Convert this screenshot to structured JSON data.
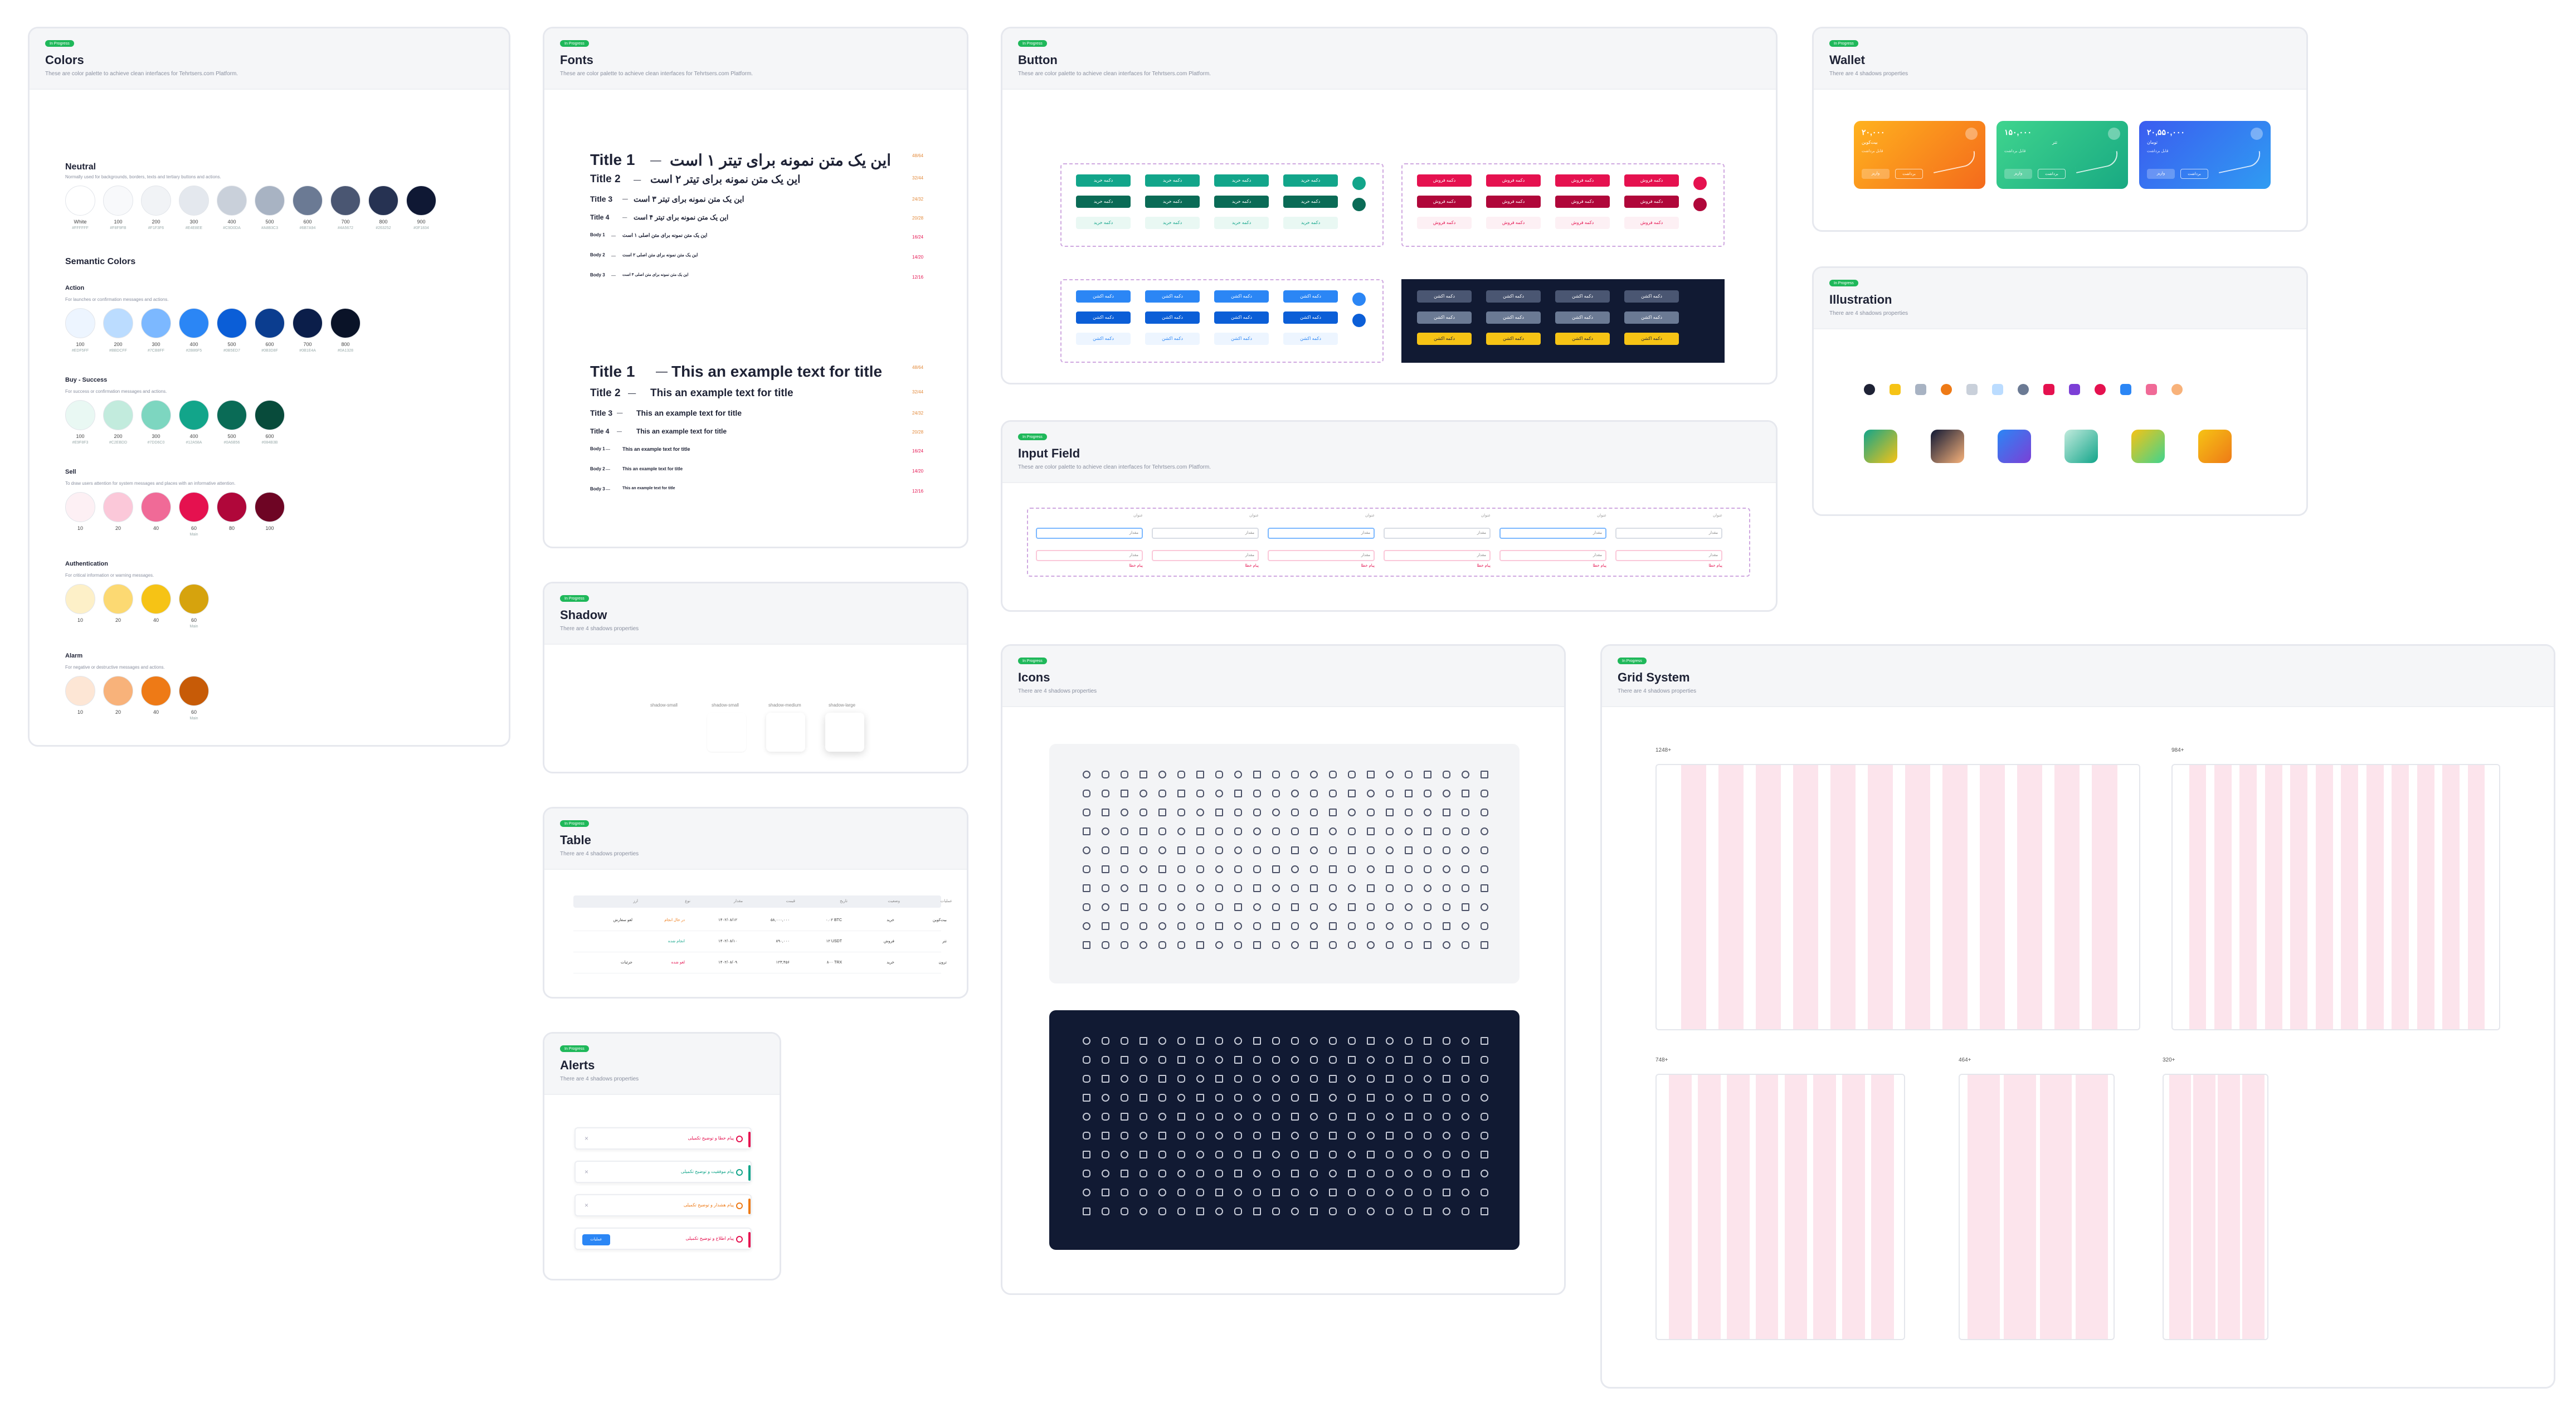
{
  "badge_label": "In Progress",
  "colors": {
    "title": "Colors",
    "sub": "These are color palette to achieve clean interfaces for Tehrtsers.com Platform.",
    "neutral": {
      "title": "Neutral",
      "desc": "Normally used for backgrounds, borders, texts and tertiary buttons and actions.",
      "swatches": [
        {
          "label": "White",
          "hex": "#FFFFFF",
          "color": "#ffffff"
        },
        {
          "label": "100",
          "hex": "#F8F9FB",
          "color": "#f8f9fb"
        },
        {
          "label": "200",
          "hex": "#F1F3F6",
          "color": "#f1f3f6"
        },
        {
          "label": "300",
          "hex": "#E4E8EE",
          "color": "#e4e8ee"
        },
        {
          "label": "400",
          "hex": "#C9D0DA",
          "color": "#c9d0da"
        },
        {
          "label": "500",
          "hex": "#A8B3C3",
          "color": "#a8b3c3"
        },
        {
          "label": "600",
          "hex": "#6B7A94",
          "color": "#6b7a94"
        },
        {
          "label": "700",
          "hex": "#4A5672",
          "color": "#4a5672"
        },
        {
          "label": "800",
          "hex": "#263252",
          "color": "#263252"
        },
        {
          "label": "900",
          "hex": "#0F1834",
          "color": "#0f1834"
        }
      ]
    },
    "semantic_title": "Semantic Colors",
    "action": {
      "title": "Action",
      "desc": "For launches or confirmation messages and actions.",
      "swatches": [
        {
          "label": "100",
          "hex": "#EDF5FF",
          "color": "#edf5ff"
        },
        {
          "label": "200",
          "hex": "#BBDCFF",
          "color": "#bbdcff"
        },
        {
          "label": "300",
          "hex": "#7CB8FF",
          "color": "#7cb8ff"
        },
        {
          "label": "400",
          "hex": "#2B86F5",
          "color": "#2b86f5"
        },
        {
          "label": "500",
          "hex": "#0B5ED7",
          "color": "#0b5ed7"
        },
        {
          "label": "600",
          "hex": "#0B3D8F",
          "color": "#0b3d8f"
        },
        {
          "label": "700",
          "hex": "#0B1E4A",
          "color": "#0b1e4a"
        },
        {
          "label": "800",
          "hex": "#0A1328",
          "color": "#0a1328"
        }
      ]
    },
    "success": {
      "title": "Buy - Success",
      "desc": "For success or confirmation messages and actions.",
      "swatches": [
        {
          "label": "100",
          "hex": "#E9F8F3",
          "color": "#e9f8f3"
        },
        {
          "label": "200",
          "hex": "#C2EBDD",
          "color": "#c2ebdd"
        },
        {
          "label": "300",
          "hex": "#7DD6C0",
          "color": "#7dd6c0"
        },
        {
          "label": "400",
          "hex": "#12A58A",
          "color": "#12a58a"
        },
        {
          "label": "500",
          "hex": "#0A6B56",
          "color": "#0a6b56"
        },
        {
          "label": "600",
          "hex": "#084B3B",
          "color": "#084b3b"
        }
      ]
    },
    "sell": {
      "title": "Sell",
      "desc": "To draw users attention for system messages and places with an informative attention.",
      "swatches": [
        {
          "label": "10",
          "hex": "",
          "color": "#fdf0f4"
        },
        {
          "label": "20",
          "hex": "",
          "color": "#fbc8d9"
        },
        {
          "label": "40",
          "hex": "",
          "color": "#f06a97"
        },
        {
          "label": "60",
          "hex": "Main",
          "color": "#e5114f"
        },
        {
          "label": "80",
          "hex": "",
          "color": "#b0073a"
        },
        {
          "label": "100",
          "hex": "",
          "color": "#6e0524"
        }
      ]
    },
    "auth": {
      "title": "Authentication",
      "desc": "For critical information or warning messages.",
      "swatches": [
        {
          "label": "10",
          "hex": "",
          "color": "#fdf0c8"
        },
        {
          "label": "20",
          "hex": "",
          "color": "#fcd972"
        },
        {
          "label": "40",
          "hex": "",
          "color": "#f6c315"
        },
        {
          "label": "60",
          "hex": "Main",
          "color": "#d6a30d"
        }
      ]
    },
    "alarm": {
      "title": "Alarm",
      "desc": "For negative or destructive messages and actions.",
      "swatches": [
        {
          "label": "10",
          "hex": "",
          "color": "#fde6d5"
        },
        {
          "label": "20",
          "hex": "",
          "color": "#f8b27a"
        },
        {
          "label": "40",
          "hex": "",
          "color": "#ee7a16"
        },
        {
          "label": "60",
          "hex": "Main",
          "color": "#c75b07"
        }
      ]
    }
  },
  "fonts": {
    "title": "Fonts",
    "sub": "These are color palette to achieve clean interfaces for Tehrtsers.com Platform.",
    "fa_rows": [
      {
        "label": "Title 1",
        "text": "این یک متن نمونه برای تیتر ۱ است",
        "meta": "48/64",
        "size": 28
      },
      {
        "label": "Title 2",
        "text": "این یک متن نمونه برای تیتر ۲ است",
        "meta": "32/44",
        "size": 19
      },
      {
        "label": "Title 3",
        "text": "این یک متن نمونه برای تیتر ۳ است",
        "meta": "24/32",
        "size": 14
      },
      {
        "label": "Title 4",
        "text": "این یک متن نمونه برای تیتر ۴ است",
        "meta": "20/28",
        "size": 12
      },
      {
        "label": "Body 1",
        "text": "این یک متن نمونه برای متن اصلی ۱ است",
        "meta": "16/24",
        "size": 9
      },
      {
        "label": "Body 2",
        "text": "این یک متن نمونه برای متن اصلی ۲ است",
        "meta": "14/20",
        "size": 8
      },
      {
        "label": "Body 3",
        "text": "این یک متن نمونه برای متن اصلی ۳ است",
        "meta": "12/16",
        "size": 7
      }
    ],
    "en_rows": [
      {
        "label": "Title 1",
        "text": "This an example text for title",
        "meta": "48/64",
        "size": 28
      },
      {
        "label": "Title 2",
        "text": "This an example text for title",
        "meta": "32/44",
        "size": 19
      },
      {
        "label": "Title 3",
        "text": "This an example text for title",
        "meta": "24/32",
        "size": 14
      },
      {
        "label": "Title 4",
        "text": "This an example text for title",
        "meta": "20/28",
        "size": 12
      },
      {
        "label": "Body 1",
        "text": "This an example text for title",
        "meta": "16/24",
        "size": 9
      },
      {
        "label": "Body 2",
        "text": "This an example text for title",
        "meta": "14/20",
        "size": 8
      },
      {
        "label": "Body 3",
        "text": "This an example text for title",
        "meta": "12/16",
        "size": 7
      }
    ]
  },
  "shadow": {
    "title": "Shadow",
    "sub": "There are 4 shadows properties",
    "items": [
      "shadow-small",
      "shadow-small",
      "shadow-medium",
      "shadow-large"
    ]
  },
  "table": {
    "title": "Table",
    "sub": "There are 4 shadows properties",
    "headers": [
      "عملیات",
      "وضعیت",
      "تاریخ",
      "قیمت",
      "مقدار",
      "نوع",
      "ارز"
    ],
    "rows": [
      [
        "لغو سفارش",
        "در حال انجام",
        "۱۴۰۲/۰۸/۱۲",
        "۵۸,۰۰۰,۰۰۰",
        "۰.۰۲ BTC",
        "خرید",
        "بیت‌کوین"
      ],
      [
        "",
        "انجام شده",
        "۱۴۰۲/۰۸/۱۰",
        "۸۹۰,۰۰۰",
        "۱۲ USDT",
        "فروش",
        "تتر"
      ],
      [
        "جزئیات",
        "لغو شده",
        "۱۴۰۲/۰۸/۰۹",
        "۱۲۳,۴۵۶",
        "۸۰۰ TRX",
        "خرید",
        "ترون"
      ]
    ]
  },
  "alerts": {
    "title": "Alerts",
    "sub": "There are 4 shadows properties",
    "items": [
      {
        "text": "پیام خطا و توضیح تکمیلی",
        "color": "#e5114f"
      },
      {
        "text": "پیام موفقیت و توضیح تکمیلی",
        "color": "#12a58a"
      },
      {
        "text": "پیام هشدار و توضیح تکمیلی",
        "color": "#ee7a16"
      },
      {
        "text": "پیام اطلاع و توضیح تکمیلی",
        "color": "#e5114f"
      }
    ],
    "action_label": "عملیات"
  },
  "button": {
    "title": "Button",
    "sub": "These are color palette to achieve clean interfaces for Tehrtsers.com Platform.",
    "buy_label": "دکمه خرید",
    "sell_label": "دکمه فروش",
    "action_label": "دکمه اکشن",
    "colors": {
      "green": "#12a58a",
      "green_dark": "#0a6b56",
      "green_light": "#e9f8f3",
      "red": "#e5114f",
      "red_dark": "#b0073a",
      "red_light": "#fdf0f4",
      "blue": "#2b86f5",
      "blue_dark": "#0b5ed7",
      "blue_light": "#edf5ff",
      "dark_bg": "#111a33",
      "gray": "#4a5672",
      "yellow": "#f6c315"
    }
  },
  "input": {
    "title": "Input Field",
    "sub": "These are color palette to achieve clean interfaces for Tehrtsers.com Platform.",
    "label": "عنوان",
    "value": "مقدار",
    "helper": "پیام خطا"
  },
  "icons": {
    "title": "Icons",
    "sub": "There are 4 shadows properties"
  },
  "wallet": {
    "title": "Wallet",
    "sub": "There are 4 shadows properties",
    "cards": [
      {
        "amount": "۲۰,۰۰۰",
        "name": "بیت‌کوین",
        "sub": "قابل برداشت",
        "btn1": "واریز",
        "btn2": "برداشت",
        "color1": "#ffb21e",
        "color2": "#f46a1c"
      },
      {
        "amount": "۱۵۰,۰۰۰",
        "name": "تتر",
        "sub": "قابل برداشت",
        "btn1": "واریز",
        "btn2": "برداشت",
        "color1": "#3fd48e",
        "color2": "#18a982"
      },
      {
        "amount": "۲۰,۵۵۰,۰۰۰",
        "name": "تومان",
        "sub": "قابل برداشت",
        "btn1": "واریز",
        "btn2": "برداشت",
        "color1": "#3b5cf0",
        "color2": "#2f9cf2"
      }
    ]
  },
  "illustration": {
    "title": "Illustration",
    "sub": "There are 4 shadows properties"
  },
  "grid": {
    "title": "Grid System",
    "sub": "There are 4 shadows properties",
    "panels": [
      {
        "label": "1248+",
        "cols": 12
      },
      {
        "label": "984+",
        "cols": 12
      },
      {
        "label": "748+",
        "cols": 8
      },
      {
        "label": "464+",
        "cols": 4
      },
      {
        "label": "320+",
        "cols": 4
      }
    ]
  }
}
